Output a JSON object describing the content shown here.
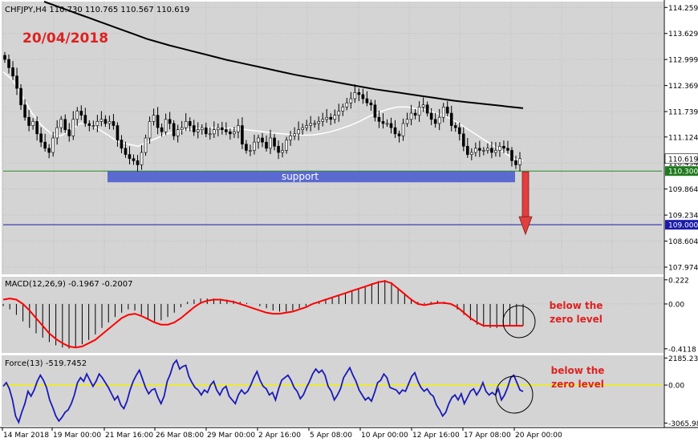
{
  "header": {
    "symbol_line": "CHFJPY,H4  110.730 110.765 110.567 110.619",
    "date_annotation": "20/04/2018"
  },
  "colors": {
    "background": "#d4d4d4",
    "frame": "#ffffff",
    "grid": "#bdbdbd",
    "candles": "#000000",
    "ma_slow": "#000000",
    "ma_fast": "#ffffff",
    "support_band": "#5b6ad0",
    "support_line": "#2a8a2a",
    "target_line": "#1b1ba8",
    "target_badge": "#1b1ba8",
    "support_badge": "#1e7a1e",
    "arrow": "#e04040",
    "annotation_red": "#e02020",
    "macd_signal": "#ff0000",
    "macd_hist": "#000000",
    "force_line": "#1a1ab8",
    "force_zero": "#f2f200"
  },
  "chart_data": [
    {
      "type": "candlestick",
      "title": "CHFJPY,H4  110.730 110.765 110.567 110.619",
      "ylim": [
        107.8,
        114.4
      ],
      "y_ticks": [
        "114.259",
        "113.629",
        "112.999",
        "112.369",
        "111.739",
        "111.124",
        "110.494",
        "109.864",
        "109.234",
        "108.604",
        "107.974"
      ],
      "y_tick_values": [
        114.259,
        113.629,
        112.999,
        112.369,
        111.739,
        111.124,
        110.494,
        109.864,
        109.234,
        108.604,
        107.974
      ],
      "current_price_label": "110.619",
      "levels": [
        {
          "name": "support",
          "value": 110.3,
          "label": "110.300"
        },
        {
          "name": "target",
          "value": 109.0,
          "label": "109.000"
        }
      ],
      "support_label": "support",
      "close": [
        113.0,
        112.8,
        112.6,
        112.3,
        111.9,
        111.6,
        111.4,
        111.5,
        111.2,
        111.0,
        110.85,
        110.75,
        111.1,
        111.35,
        111.55,
        111.3,
        111.15,
        111.55,
        111.75,
        111.65,
        111.45,
        111.4,
        111.4,
        111.5,
        111.55,
        111.45,
        111.5,
        111.4,
        111.05,
        110.85,
        110.7,
        110.6,
        110.55,
        110.45,
        110.75,
        111.1,
        111.5,
        111.65,
        111.35,
        111.25,
        111.55,
        111.45,
        111.15,
        111.3,
        111.35,
        111.5,
        111.4,
        111.25,
        111.3,
        111.35,
        111.2,
        111.2,
        111.3,
        111.35,
        111.3,
        111.25,
        111.2,
        111.25,
        111.4,
        110.95,
        110.8,
        110.8,
        111.0,
        111.1,
        111.0,
        110.85,
        111.1,
        110.9,
        110.75,
        110.8,
        111.05,
        111.15,
        111.2,
        111.3,
        111.35,
        111.4,
        111.45,
        111.45,
        111.5,
        111.55,
        111.6,
        111.55,
        111.65,
        111.75,
        111.85,
        111.95,
        112.05,
        112.2,
        112.15,
        112.05,
        111.95,
        111.9,
        111.6,
        111.5,
        111.45,
        111.45,
        111.35,
        111.2,
        111.15,
        111.45,
        111.55,
        111.7,
        111.65,
        111.85,
        111.9,
        111.7,
        111.55,
        111.45,
        111.6,
        111.85,
        111.7,
        111.4,
        111.35,
        111.2,
        110.9,
        110.7,
        110.75,
        110.85,
        110.8,
        110.8,
        110.85,
        110.75,
        110.8,
        110.9,
        110.85,
        110.8,
        110.55,
        110.45,
        110.6
      ],
      "ma_slow": [
        114.4,
        114.3,
        114.2,
        114.1,
        114.0,
        113.9,
        113.8,
        113.7,
        113.6,
        113.5,
        113.42,
        113.34,
        113.27,
        113.2,
        113.13,
        113.06,
        112.99,
        112.93,
        112.87,
        112.81,
        112.75,
        112.69,
        112.63,
        112.58,
        112.53,
        112.48,
        112.43,
        112.38,
        112.33,
        112.28,
        112.24,
        112.2,
        112.16,
        112.12,
        112.08,
        112.04,
        112.0,
        111.97,
        111.94,
        111.91,
        111.88,
        111.85,
        111.82
      ],
      "ma_fast": [
        112.7,
        112.5,
        112.1,
        111.7,
        111.4,
        111.2,
        111.15,
        111.3,
        111.45,
        111.45,
        111.3,
        111.15,
        111.0,
        110.95,
        110.9,
        111.0,
        111.1,
        111.2,
        111.25,
        111.3,
        111.33,
        111.35,
        111.35,
        111.34,
        111.33,
        111.31,
        111.28,
        111.25,
        111.22,
        111.2,
        111.18,
        111.17,
        111.17,
        111.2,
        111.25,
        111.32,
        111.4,
        111.5,
        111.62,
        111.72,
        111.8,
        111.85,
        111.85,
        111.8,
        111.78,
        111.7,
        111.62,
        111.5,
        111.35,
        111.2,
        111.05,
        110.9,
        110.75,
        110.6,
        110.55
      ]
    },
    {
      "type": "line",
      "title": "MACD(12,26,9) -0.1967 -0.2007",
      "ylim": [
        -0.45,
        0.25
      ],
      "y_ticks": [
        "0.222",
        "0.00",
        "-0.4118"
      ],
      "y_tick_values": [
        0.222,
        0.0,
        -0.4118
      ],
      "series": [
        {
          "name": "histogram",
          "values": [
            -0.02,
            -0.05,
            -0.1,
            -0.16,
            -0.22,
            -0.27,
            -0.31,
            -0.35,
            -0.38,
            -0.4,
            -0.41,
            -0.4,
            -0.37,
            -0.33,
            -0.28,
            -0.22,
            -0.17,
            -0.12,
            -0.08,
            -0.05,
            -0.06,
            -0.1,
            -0.14,
            -0.16,
            -0.15,
            -0.12,
            -0.08,
            -0.03,
            0.02,
            0.04,
            0.05,
            0.05,
            0.05,
            0.04,
            0.04,
            0.03,
            0.02,
            0.01,
            0.0,
            -0.02,
            -0.04,
            -0.06,
            -0.07,
            -0.07,
            -0.06,
            -0.04,
            -0.02,
            0.0,
            0.02,
            0.04,
            0.06,
            0.08,
            0.1,
            0.12,
            0.14,
            0.16,
            0.19,
            0.21,
            0.22,
            0.2,
            0.15,
            0.1,
            0.05,
            0.02,
            0.01,
            0.02,
            0.03,
            0.02,
            0.0,
            -0.05,
            -0.1,
            -0.15,
            -0.19,
            -0.21,
            -0.22,
            -0.22,
            -0.21,
            -0.2,
            -0.2,
            -0.2
          ]
        },
        {
          "name": "signal",
          "values": [
            0.04,
            0.05,
            0.04,
            0.0,
            -0.06,
            -0.13,
            -0.2,
            -0.27,
            -0.32,
            -0.36,
            -0.39,
            -0.4,
            -0.39,
            -0.36,
            -0.33,
            -0.28,
            -0.23,
            -0.18,
            -0.13,
            -0.1,
            -0.09,
            -0.11,
            -0.14,
            -0.17,
            -0.19,
            -0.19,
            -0.17,
            -0.13,
            -0.08,
            -0.03,
            0.01,
            0.03,
            0.04,
            0.04,
            0.03,
            0.02,
            0.0,
            -0.02,
            -0.04,
            -0.06,
            -0.08,
            -0.09,
            -0.09,
            -0.08,
            -0.07,
            -0.05,
            -0.03,
            0.0,
            0.02,
            0.04,
            0.06,
            0.08,
            0.1,
            0.12,
            0.14,
            0.16,
            0.18,
            0.2,
            0.21,
            0.19,
            0.14,
            0.09,
            0.04,
            0.0,
            -0.01,
            0.0,
            0.01,
            0.01,
            0.0,
            -0.03,
            -0.08,
            -0.13,
            -0.17,
            -0.2,
            -0.2,
            -0.2,
            -0.2,
            -0.2,
            -0.2,
            -0.2
          ]
        }
      ],
      "annotation": "below the zero level"
    },
    {
      "type": "line",
      "title": "Force(13) -519.7452",
      "ylim": [
        -3300,
        2400
      ],
      "y_ticks": [
        "2185.234",
        "0.00",
        "-3065.988"
      ],
      "y_tick_values": [
        2185.234,
        0.0,
        -3065.988
      ],
      "series": [
        {
          "name": "force",
          "values": [
            -100,
            200,
            -300,
            -1200,
            -2500,
            -3000,
            -2200,
            -1500,
            -500,
            -900,
            -400,
            300,
            800,
            400,
            -200,
            -1200,
            -1800,
            -2500,
            -2900,
            -2600,
            -2200,
            -2000,
            -1500,
            -800,
            200,
            600,
            300,
            900,
            400,
            -100,
            300,
            900,
            600,
            200,
            -200,
            -700,
            -1200,
            -900,
            -1600,
            -1900,
            -1300,
            -400,
            300,
            800,
            1200,
            500,
            -200,
            -700,
            -400,
            -300,
            -1000,
            -1500,
            -900,
            300,
            900,
            1700,
            2000,
            1300,
            1500,
            1600,
            700,
            200,
            -200,
            -400,
            -800,
            -400,
            -600,
            0,
            300,
            -400,
            -800,
            -300,
            -100,
            -900,
            -1200,
            -1500,
            -800,
            -400,
            -700,
            -500,
            0,
            600,
            1100,
            400,
            -100,
            -300,
            -800,
            -600,
            -1200,
            -300,
            400,
            600,
            800,
            400,
            -200,
            -500,
            -1100,
            -800,
            -200,
            300,
            900,
            1300,
            1000,
            1200,
            800,
            -100,
            -500,
            -1200,
            -800,
            -300,
            600,
            1000,
            1400,
            800,
            300,
            -400,
            -800,
            -1200,
            -1000,
            -1300,
            -600,
            200,
            400,
            900,
            600,
            -200,
            -300,
            -400,
            -700,
            -400,
            -500,
            100,
            700,
            1000,
            300,
            -200,
            -500,
            -300,
            -700,
            -900,
            -1600,
            -2000,
            -2500,
            -2200,
            -1500,
            -1000,
            -800,
            -1200,
            -700,
            -1500,
            -1000,
            -500,
            -300,
            -800,
            -400,
            200,
            -500,
            -800,
            -600,
            -800,
            -300,
            -1200,
            -800,
            -200,
            600,
            800,
            200,
            -400,
            -520
          ]
        }
      ],
      "zero_line": 0,
      "annotation": "below the zero level"
    }
  ],
  "x_axis": {
    "labels": [
      "14 Mar 2018",
      "19 Mar 00:00",
      "21 Mar 16:00",
      "26 Mar 08:00",
      "29 Mar 00:00",
      "2 Apr 16:00",
      "5 Apr 08:00",
      "10 Apr 00:00",
      "12 Apr 16:00",
      "17 Apr 08:00",
      "20 Apr 00:00"
    ]
  }
}
